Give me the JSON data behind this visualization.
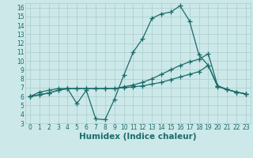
{
  "xlabel": "Humidex (Indice chaleur)",
  "ylabel": "",
  "bg_color": "#cce8e8",
  "grid_color": "#aacccc",
  "line_color": "#1a6b6b",
  "xlim": [
    -0.5,
    23.5
  ],
  "ylim": [
    3,
    16.5
  ],
  "xticks": [
    0,
    1,
    2,
    3,
    4,
    5,
    6,
    7,
    8,
    9,
    10,
    11,
    12,
    13,
    14,
    15,
    16,
    17,
    18,
    19,
    20,
    21,
    22,
    23
  ],
  "yticks": [
    3,
    4,
    5,
    6,
    7,
    8,
    9,
    10,
    11,
    12,
    13,
    14,
    15,
    16
  ],
  "series1_x": [
    0,
    1,
    2,
    3,
    4,
    5,
    6,
    7,
    8,
    9,
    10,
    11,
    12,
    13,
    14,
    15,
    16,
    17,
    18,
    19,
    20,
    21,
    22,
    23
  ],
  "series1_y": [
    6.0,
    6.5,
    6.7,
    6.9,
    6.9,
    5.2,
    6.7,
    3.5,
    3.4,
    5.7,
    8.4,
    11.0,
    12.5,
    14.8,
    15.3,
    15.5,
    16.2,
    14.5,
    10.7,
    9.5,
    7.1,
    6.8,
    6.5,
    6.3
  ],
  "series2_x": [
    0,
    1,
    2,
    3,
    4,
    5,
    6,
    7,
    8,
    9,
    10,
    11,
    12,
    13,
    14,
    15,
    16,
    17,
    18,
    19,
    20,
    21,
    22,
    23
  ],
  "series2_y": [
    6.0,
    6.2,
    6.4,
    6.7,
    6.9,
    6.9,
    6.9,
    6.9,
    6.9,
    6.9,
    7.0,
    7.1,
    7.2,
    7.4,
    7.6,
    7.9,
    8.2,
    8.5,
    8.8,
    9.5,
    7.2,
    6.8,
    6.5,
    6.3
  ],
  "series3_x": [
    0,
    1,
    2,
    3,
    4,
    5,
    6,
    7,
    8,
    9,
    10,
    11,
    12,
    13,
    14,
    15,
    16,
    17,
    18,
    19,
    20,
    21,
    22,
    23
  ],
  "series3_y": [
    6.0,
    6.2,
    6.4,
    6.7,
    6.9,
    6.9,
    6.9,
    6.9,
    6.9,
    6.9,
    7.1,
    7.3,
    7.6,
    8.0,
    8.5,
    9.0,
    9.5,
    9.9,
    10.2,
    10.8,
    7.2,
    6.8,
    6.5,
    6.3
  ],
  "marker": "+",
  "markersize": 4,
  "linewidth": 0.9,
  "font_color": "#1a6b6b",
  "tick_fontsize": 5.5,
  "label_fontsize": 7.5,
  "fig_width": 3.2,
  "fig_height": 2.0,
  "dpi": 100
}
